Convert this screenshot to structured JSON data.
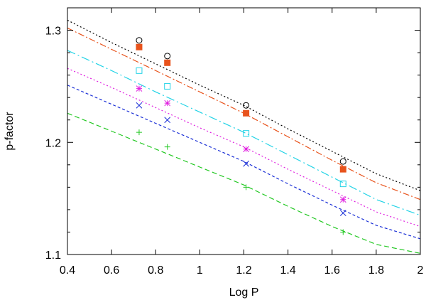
{
  "chart_data": {
    "type": "scatter",
    "title": "",
    "xlabel": "Log P",
    "ylabel": "p-factor",
    "xlim": [
      0.4,
      2.0
    ],
    "ylim": [
      1.1,
      1.32
    ],
    "x_ticks": [
      0.4,
      0.6,
      0.8,
      1.0,
      1.2,
      1.4,
      1.6,
      1.8,
      2.0
    ],
    "x_tick_labels": [
      "0.4",
      "0.6",
      "0.8",
      "1",
      "1.2",
      "1.4",
      "1.6",
      "1.8",
      "2"
    ],
    "y_ticks": [
      1.1,
      1.2,
      1.3
    ],
    "y_tick_labels": [
      "1.1",
      "1.2",
      "1.3"
    ],
    "grid": false,
    "series": [
      {
        "name": "series-black",
        "color": "#000000",
        "marker": "open-circle",
        "line_style": "dotted",
        "points": [
          [
            0.725,
            1.291
          ],
          [
            0.853,
            1.277
          ],
          [
            1.21,
            1.233
          ],
          [
            1.65,
            1.183
          ]
        ],
        "curve": [
          [
            0.4,
            1.309
          ],
          [
            0.6,
            1.289
          ],
          [
            0.8,
            1.27
          ],
          [
            1.0,
            1.251
          ],
          [
            1.2,
            1.233
          ],
          [
            1.4,
            1.212
          ],
          [
            1.6,
            1.192
          ],
          [
            1.8,
            1.172
          ],
          [
            2.0,
            1.157
          ]
        ]
      },
      {
        "name": "series-orange",
        "color": "#e8531c",
        "marker": "filled-square",
        "line_style": "dash-dot",
        "points": [
          [
            0.725,
            1.285
          ],
          [
            0.853,
            1.271
          ],
          [
            1.21,
            1.226
          ],
          [
            1.65,
            1.176
          ]
        ],
        "curve": [
          [
            0.4,
            1.302
          ],
          [
            0.6,
            1.283
          ],
          [
            0.8,
            1.264
          ],
          [
            1.0,
            1.245
          ],
          [
            1.2,
            1.226
          ],
          [
            1.4,
            1.205
          ],
          [
            1.6,
            1.184
          ],
          [
            1.8,
            1.164
          ],
          [
            2.0,
            1.149
          ]
        ]
      },
      {
        "name": "series-cyan",
        "color": "#22d3e6",
        "marker": "open-square",
        "line_style": "long-dash-dot",
        "points": [
          [
            0.725,
            1.264
          ],
          [
            0.853,
            1.25
          ],
          [
            1.21,
            1.208
          ],
          [
            1.65,
            1.163
          ]
        ],
        "curve": [
          [
            0.4,
            1.282
          ],
          [
            0.6,
            1.264
          ],
          [
            0.8,
            1.245
          ],
          [
            1.0,
            1.227
          ],
          [
            1.2,
            1.209
          ],
          [
            1.4,
            1.189
          ],
          [
            1.6,
            1.169
          ],
          [
            1.8,
            1.149
          ],
          [
            2.0,
            1.135
          ]
        ]
      },
      {
        "name": "series-magenta",
        "color": "#e020e0",
        "marker": "asterisk",
        "line_style": "dotted",
        "points": [
          [
            0.725,
            1.248
          ],
          [
            0.853,
            1.235
          ],
          [
            1.21,
            1.194
          ],
          [
            1.65,
            1.149
          ]
        ],
        "curve": [
          [
            0.4,
            1.266
          ],
          [
            0.6,
            1.249
          ],
          [
            0.8,
            1.231
          ],
          [
            1.0,
            1.213
          ],
          [
            1.2,
            1.196
          ],
          [
            1.4,
            1.176
          ],
          [
            1.6,
            1.157
          ],
          [
            1.8,
            1.138
          ],
          [
            2.0,
            1.125
          ]
        ]
      },
      {
        "name": "series-blue",
        "color": "#1a2fd6",
        "marker": "cross",
        "line_style": "short-dash",
        "points": [
          [
            0.725,
            1.233
          ],
          [
            0.853,
            1.22
          ],
          [
            1.21,
            1.181
          ],
          [
            1.65,
            1.137
          ]
        ],
        "curve": [
          [
            0.4,
            1.251
          ],
          [
            0.6,
            1.234
          ],
          [
            0.8,
            1.217
          ],
          [
            1.0,
            1.2
          ],
          [
            1.2,
            1.183
          ],
          [
            1.4,
            1.163
          ],
          [
            1.6,
            1.144
          ],
          [
            1.8,
            1.126
          ],
          [
            2.0,
            1.114
          ]
        ]
      },
      {
        "name": "series-green",
        "color": "#22c822",
        "marker": "plus",
        "line_style": "dashed",
        "points": [
          [
            0.725,
            1.209
          ],
          [
            0.853,
            1.196
          ],
          [
            1.21,
            1.16
          ],
          [
            1.65,
            1.12
          ]
        ],
        "curve": [
          [
            0.4,
            1.226
          ],
          [
            0.6,
            1.21
          ],
          [
            0.8,
            1.194
          ],
          [
            1.0,
            1.178
          ],
          [
            1.2,
            1.162
          ],
          [
            1.4,
            1.143
          ],
          [
            1.6,
            1.125
          ],
          [
            1.8,
            1.109
          ],
          [
            2.0,
            1.101
          ]
        ]
      }
    ]
  }
}
